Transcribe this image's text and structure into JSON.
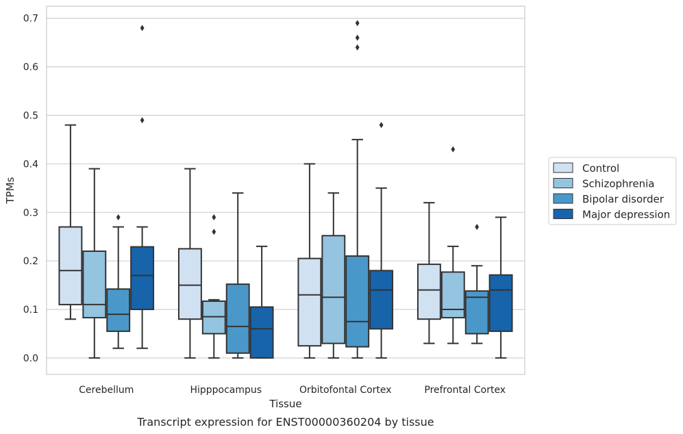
{
  "chart_data": {
    "type": "box",
    "xlabel": "Tissue",
    "ylabel": "TPMs",
    "caption": "Transcript expression for ENST00000360204 by tissue",
    "ylim": [
      -0.034,
      0.725
    ],
    "yticks": [
      0.0,
      0.1,
      0.2,
      0.3,
      0.4,
      0.5,
      0.6,
      0.7
    ],
    "ytick_labels": [
      "0.0",
      "0.1",
      "0.2",
      "0.3",
      "0.4",
      "0.5",
      "0.6",
      "0.7"
    ],
    "grid": "horizontal",
    "legend_placement": "right",
    "categories": [
      "Cerebellum",
      "Hipppocampus",
      "Orbitofontal Cortex",
      "Prefrontal Cortex"
    ],
    "series": [
      {
        "name": "Control",
        "color": "#d0e1f2",
        "boxes": [
          {
            "whisker_low": 0.08,
            "q1": 0.11,
            "median": 0.18,
            "q3": 0.27,
            "whisker_high": 0.48,
            "outliers": []
          },
          {
            "whisker_low": 0.0,
            "q1": 0.08,
            "median": 0.15,
            "q3": 0.225,
            "whisker_high": 0.39,
            "outliers": []
          },
          {
            "whisker_low": 0.0,
            "q1": 0.025,
            "median": 0.13,
            "q3": 0.205,
            "whisker_high": 0.4,
            "outliers": []
          },
          {
            "whisker_low": 0.03,
            "q1": 0.08,
            "median": 0.14,
            "q3": 0.193,
            "whisker_high": 0.32,
            "outliers": []
          }
        ]
      },
      {
        "name": "Schizophrenia",
        "color": "#94c4df",
        "boxes": [
          {
            "whisker_low": 0.0,
            "q1": 0.083,
            "median": 0.11,
            "q3": 0.22,
            "whisker_high": 0.39,
            "outliers": []
          },
          {
            "whisker_low": 0.0,
            "q1": 0.05,
            "median": 0.085,
            "q3": 0.117,
            "whisker_high": 0.12,
            "outliers": [
              0.26,
              0.29
            ]
          },
          {
            "whisker_low": 0.0,
            "q1": 0.03,
            "median": 0.125,
            "q3": 0.252,
            "whisker_high": 0.34,
            "outliers": []
          },
          {
            "whisker_low": 0.03,
            "q1": 0.083,
            "median": 0.1,
            "q3": 0.177,
            "whisker_high": 0.23,
            "outliers": [
              0.43
            ]
          }
        ]
      },
      {
        "name": "Bipolar disorder",
        "color": "#4a98c9",
        "boxes": [
          {
            "whisker_low": 0.02,
            "q1": 0.055,
            "median": 0.09,
            "q3": 0.142,
            "whisker_high": 0.27,
            "outliers": [
              0.29
            ]
          },
          {
            "whisker_low": 0.0,
            "q1": 0.01,
            "median": 0.065,
            "q3": 0.152,
            "whisker_high": 0.34,
            "outliers": []
          },
          {
            "whisker_low": 0.0,
            "q1": 0.023,
            "median": 0.075,
            "q3": 0.21,
            "whisker_high": 0.45,
            "outliers": [
              0.64,
              0.66,
              0.69
            ]
          },
          {
            "whisker_low": 0.03,
            "q1": 0.05,
            "median": 0.125,
            "q3": 0.138,
            "whisker_high": 0.19,
            "outliers": [
              0.27
            ]
          }
        ]
      },
      {
        "name": "Major depression",
        "color": "#1764ab",
        "boxes": [
          {
            "whisker_low": 0.02,
            "q1": 0.1,
            "median": 0.17,
            "q3": 0.229,
            "whisker_high": 0.27,
            "outliers": [
              0.49,
              0.68
            ]
          },
          {
            "whisker_low": 0.0,
            "q1": 0.0,
            "median": 0.06,
            "q3": 0.105,
            "whisker_high": 0.23,
            "outliers": []
          },
          {
            "whisker_low": 0.0,
            "q1": 0.06,
            "median": 0.14,
            "q3": 0.18,
            "whisker_high": 0.35,
            "outliers": [
              0.48
            ]
          },
          {
            "whisker_low": 0.0,
            "q1": 0.055,
            "median": 0.14,
            "q3": 0.171,
            "whisker_high": 0.29,
            "outliers": []
          }
        ]
      }
    ]
  }
}
